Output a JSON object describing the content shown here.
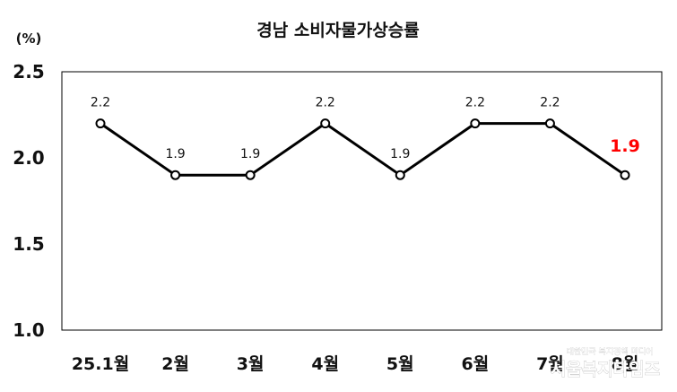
{
  "chart_data": {
    "type": "line",
    "title": "경남 소비자물가상승률",
    "unit_label": "(%)",
    "categories": [
      "25.1월",
      "2월",
      "3월",
      "4월",
      "5월",
      "6월",
      "7월",
      "8월"
    ],
    "series": [
      {
        "values": [
          2.2,
          1.9,
          1.9,
          2.2,
          1.9,
          2.2,
          2.2,
          1.9
        ]
      }
    ],
    "data_labels": [
      "2.2",
      "1.9",
      "1.9",
      "2.2",
      "1.9",
      "2.2",
      "2.2",
      "1.9"
    ],
    "highlight_index": 7,
    "highlight_color": "#ff0000",
    "line_color": "#000000",
    "ylim": [
      1.0,
      2.5
    ],
    "yticks": [
      "2.5",
      "2.0",
      "1.5",
      "1.0"
    ],
    "ytick_values": [
      2.5,
      2.0,
      1.5,
      1.0
    ],
    "grid": false,
    "legend": "none"
  },
  "watermark": {
    "text": "서울복지타임즈",
    "subtext": "대한민국 복지정책 미디어"
  }
}
